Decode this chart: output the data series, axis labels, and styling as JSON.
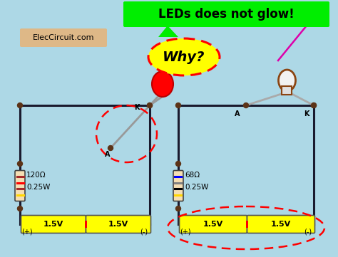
{
  "bg_color": "#add8e6",
  "title_text": "LEDs does not glow!",
  "title_bg": "#00ee00",
  "why_text": "Why?",
  "why_bg": "yellow",
  "why_border_color": "red",
  "logo_text": "ElecCircuit.com",
  "logo_bg": "#deb887",
  "circuit1": {
    "resistor_label": "120Ω",
    "power_label": "0.25W",
    "battery1": "1.5V",
    "battery2": "1.5V",
    "plus": "(+)",
    "minus": "(-)",
    "led_color": "red",
    "dashed_circle": true
  },
  "circuit2": {
    "resistor_label": "68Ω",
    "power_label": "0.25W",
    "battery1": "1.5V",
    "battery2": "1.5V",
    "plus": "(+)",
    "minus": "(-)",
    "led_color": "white",
    "dashed_ellipse": true
  },
  "wire_color": "#1a1a2e",
  "junction_color": "#5c3317",
  "battery_color": "yellow",
  "resistor_body_color": "#f5deb3"
}
